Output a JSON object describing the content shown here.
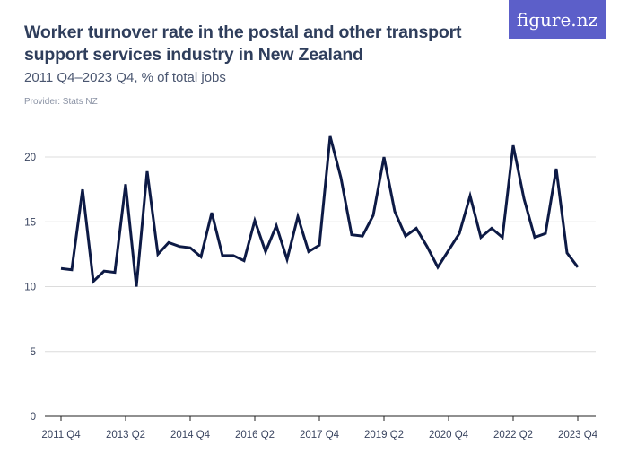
{
  "header": {
    "title": "Worker turnover rate in the postal and other transport support services industry in New Zealand",
    "subtitle": "2011 Q4–2023 Q4, % of total jobs",
    "provider": "Provider: Stats NZ",
    "logo": "figure.nz"
  },
  "chart_data": {
    "type": "line",
    "title": "Worker turnover rate in the postal and other transport support services industry in New Zealand",
    "subtitle": "2011 Q4–2023 Q4, % of total jobs",
    "xlabel": "",
    "ylabel": "",
    "ylim": [
      0,
      22
    ],
    "yticks": [
      0,
      5,
      10,
      15,
      20
    ],
    "xtick_labels": [
      "2011 Q4",
      "2013 Q2",
      "2014 Q4",
      "2016 Q2",
      "2017 Q4",
      "2019 Q2",
      "2020 Q4",
      "2022 Q2",
      "2023 Q4"
    ],
    "grid": true,
    "line_color": "#0d1a45",
    "x": [
      "2011 Q4",
      "2012 Q1",
      "2012 Q2",
      "2012 Q3",
      "2012 Q4",
      "2013 Q1",
      "2013 Q2",
      "2013 Q3",
      "2013 Q4",
      "2014 Q1",
      "2014 Q2",
      "2014 Q3",
      "2014 Q4",
      "2015 Q1",
      "2015 Q2",
      "2015 Q3",
      "2015 Q4",
      "2016 Q1",
      "2016 Q2",
      "2016 Q3",
      "2016 Q4",
      "2017 Q1",
      "2017 Q2",
      "2017 Q3",
      "2017 Q4",
      "2018 Q1",
      "2018 Q2",
      "2018 Q3",
      "2018 Q4",
      "2019 Q1",
      "2019 Q2",
      "2019 Q3",
      "2019 Q4",
      "2020 Q1",
      "2020 Q2",
      "2020 Q3",
      "2020 Q4",
      "2021 Q1",
      "2021 Q2",
      "2021 Q3",
      "2021 Q4",
      "2022 Q1",
      "2022 Q2",
      "2022 Q3",
      "2022 Q4",
      "2023 Q1",
      "2023 Q2",
      "2023 Q3",
      "2023 Q4"
    ],
    "values": [
      11.4,
      11.3,
      17.5,
      10.4,
      11.2,
      11.1,
      17.9,
      10.0,
      18.9,
      12.5,
      13.4,
      13.1,
      13.0,
      12.3,
      15.7,
      12.4,
      12.4,
      12.0,
      15.1,
      12.7,
      14.7,
      12.1,
      15.4,
      12.7,
      13.2,
      21.6,
      18.4,
      14.0,
      13.9,
      15.5,
      20.0,
      15.8,
      13.9,
      14.5,
      13.1,
      11.5,
      12.8,
      14.1,
      17.0,
      13.8,
      14.5,
      13.8,
      20.9,
      16.8,
      13.8,
      14.1,
      19.1,
      12.6,
      11.5
    ]
  }
}
